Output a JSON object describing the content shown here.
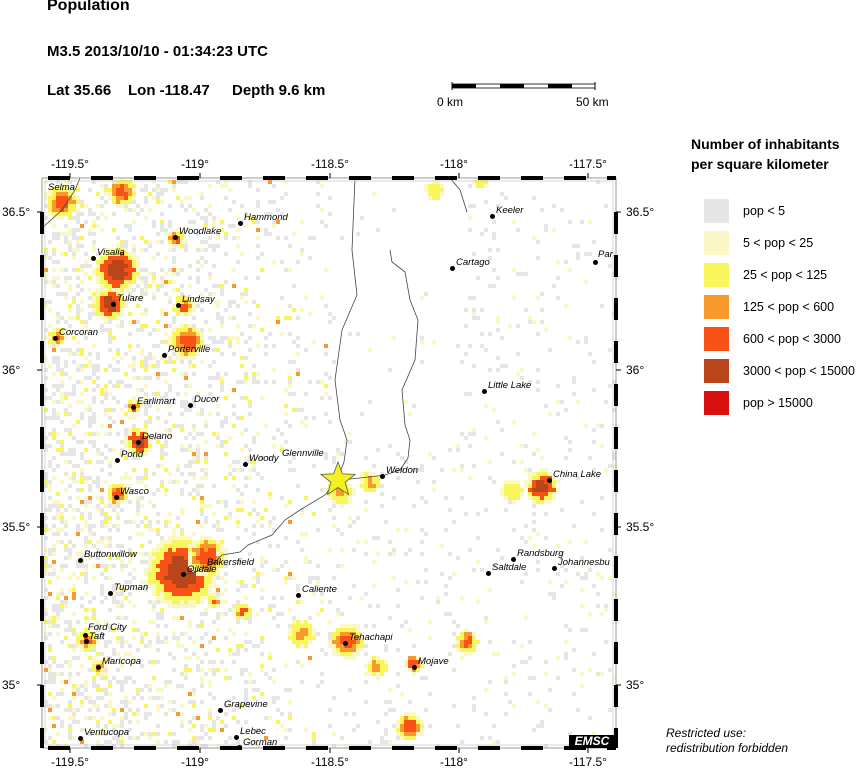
{
  "header": {
    "title": "Population",
    "event": "M3.5  2013/10/10 - 01:34:23 UTC",
    "lat": "Lat 35.66",
    "lon": "Lon -118.47",
    "depth": "Depth  9.6 km"
  },
  "scale_bar": {
    "start": "0 km",
    "end": "50 km"
  },
  "map": {
    "lon_ticks": [
      "-119.5°",
      "-119°",
      "-118.5°",
      "-118°",
      "-117.5°"
    ],
    "lat_ticks": [
      "36.5°",
      "36°",
      "35.5°",
      "35°"
    ],
    "epicenter_icon": "star-icon",
    "epicenter_color": "#f5f020",
    "cities": [
      "Selma",
      "Hammond",
      "Woodlake",
      "Visalia",
      "Tulare",
      "Lindsay",
      "Corcoran",
      "Porterville",
      "Earlimart",
      "Ducor",
      "Delano",
      "Pond",
      "Woody",
      "Glennville",
      "Wasco",
      "Buttonwillow",
      "Bakersfield",
      "Oildale",
      "Tupman",
      "Caliente",
      "Ford City",
      "Taft",
      "Maricopa",
      "Grapevine",
      "Ventucopa",
      "Lebec",
      "Gorman",
      "Tehachapi",
      "Mojave",
      "Keeler",
      "Cartago",
      "Par",
      "Little Lake",
      "Weldon",
      "China Lake",
      "Randsburg",
      "Saltdale",
      "Johannesbu"
    ]
  },
  "legend": {
    "title_line1": "Number of inhabitants",
    "title_line2": "per square kilometer",
    "items": [
      {
        "label": "pop < 5",
        "color": "#e6e6e6"
      },
      {
        "label": "5 < pop < 25",
        "color": "#fbf8c8"
      },
      {
        "label": "25 < pop < 125",
        "color": "#f8f65a"
      },
      {
        "label": "125 < pop < 600",
        "color": "#f8992e"
      },
      {
        "label": "600 < pop < 3000",
        "color": "#f85216"
      },
      {
        "label": "3000 < pop < 15000",
        "color": "#b8461a"
      },
      {
        "label": "pop > 15000",
        "color": "#d81010"
      }
    ]
  },
  "footer": {
    "logo": "EMSC",
    "restricted_line1": "Restricted use:",
    "restricted_line2": "redistribution forbidden"
  }
}
